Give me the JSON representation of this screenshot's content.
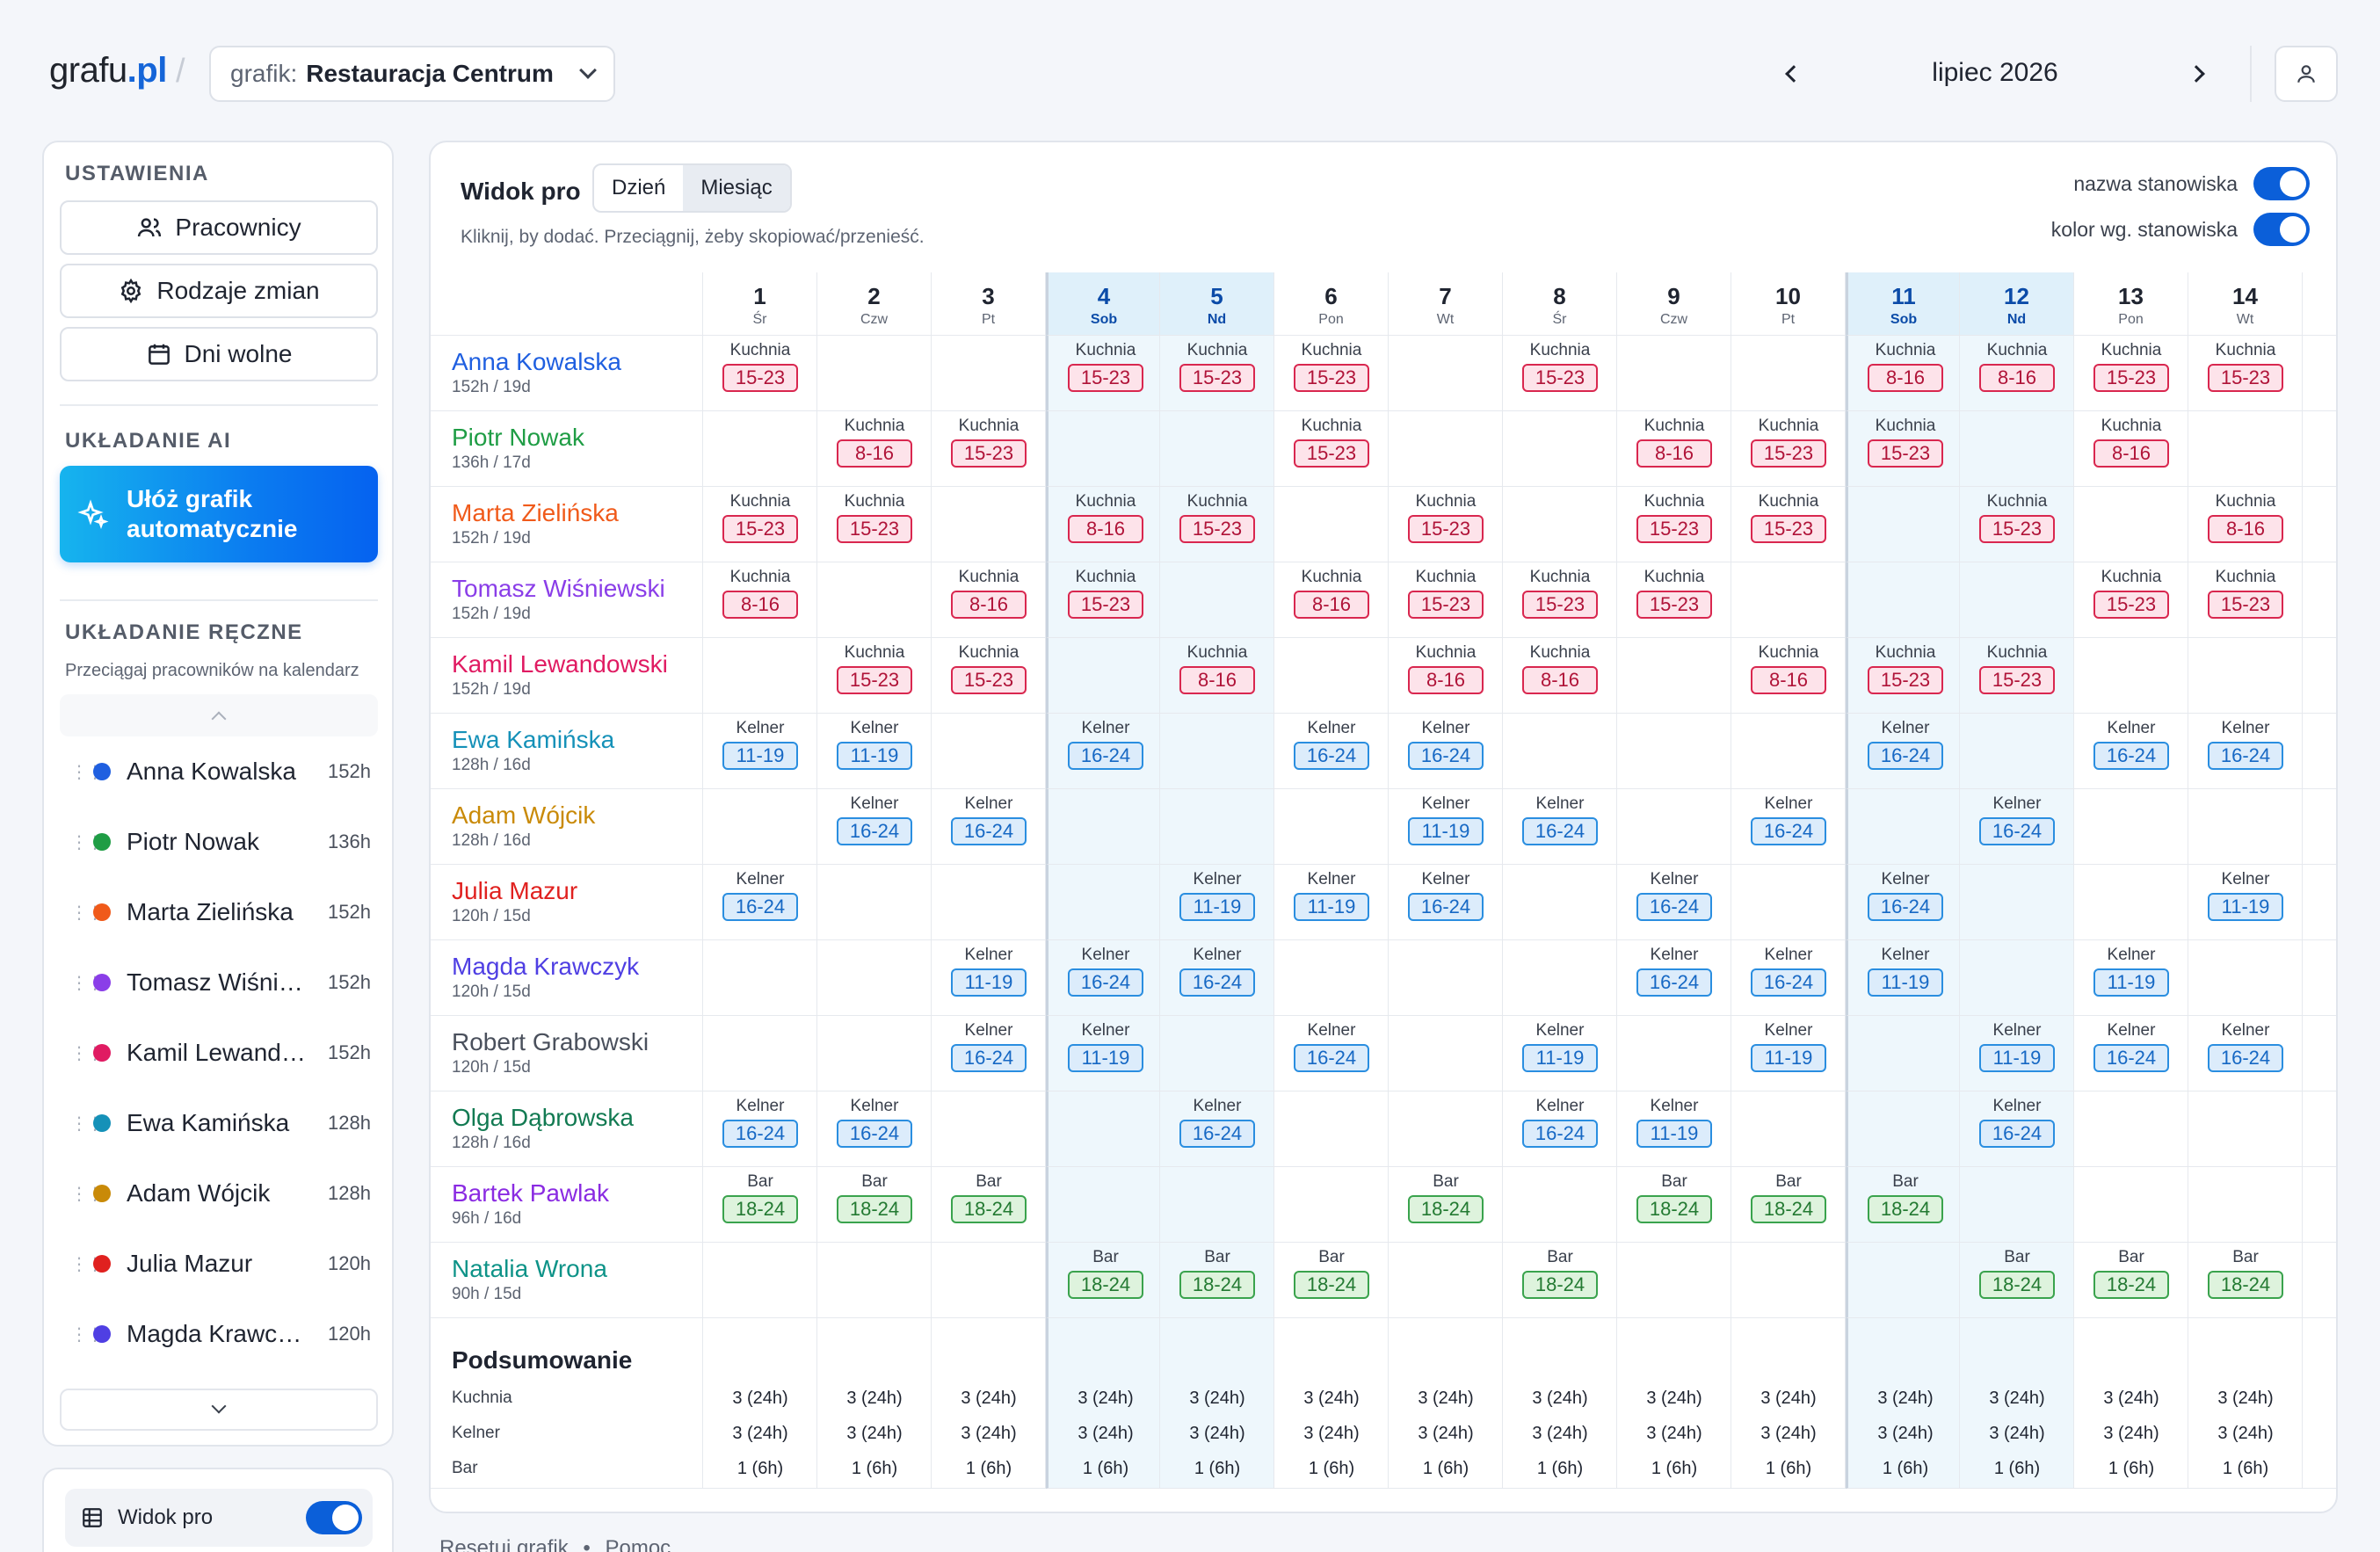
{
  "header": {
    "logo_main": "grafu",
    "logo_tld": ".pl",
    "schedule_label": "grafik:",
    "schedule_name": "Restauracja Centrum",
    "month": "lipiec 2026"
  },
  "sidebar": {
    "settings_title": "USTAWIENIA",
    "employees_btn": "Pracownicy",
    "shift_types_btn": "Rodzaje zmian",
    "days_off_btn": "Dni wolne",
    "ai_title": "UKŁADANIE AI",
    "ai_btn_line1": "Ułóż grafik",
    "ai_btn_line2": "automatycznie",
    "manual_title": "UKŁADANIE RĘCZNE",
    "manual_hint": "Przeciągaj pracowników na kalendarz",
    "list": [
      {
        "name": "Anna Kowalska",
        "hours": "152h",
        "color": "#1f5fe0"
      },
      {
        "name": "Piotr Nowak",
        "hours": "136h",
        "color": "#1f9d45"
      },
      {
        "name": "Marta Zielińska",
        "hours": "152h",
        "color": "#f05a1a"
      },
      {
        "name": "Tomasz Wiśniewski",
        "hours": "152h",
        "color": "#8a3ee8"
      },
      {
        "name": "Kamil Lewandowski",
        "hours": "152h",
        "color": "#e01b62"
      },
      {
        "name": "Ewa Kamińska",
        "hours": "128h",
        "color": "#1591b8"
      },
      {
        "name": "Adam Wójcik",
        "hours": "128h",
        "color": "#c98a08"
      },
      {
        "name": "Julia Mazur",
        "hours": "120h",
        "color": "#e0211f"
      },
      {
        "name": "Magda Krawczyk",
        "hours": "120h",
        "color": "#4f3fe3"
      }
    ],
    "pro_view_label": "Widok pro"
  },
  "main": {
    "title": "Widok pro",
    "tab_day": "Dzień",
    "tab_month": "Miesiąc",
    "hint": "Kliknij, by dodać. Przeciągnij, żeby skopiować/przenieść.",
    "opt_position_name": "nazwa stanowiska",
    "opt_color_by_position": "kolor wg. stanowiska",
    "days": [
      {
        "num": "1",
        "wd": "Śr",
        "wknd": false
      },
      {
        "num": "2",
        "wd": "Czw",
        "wknd": false
      },
      {
        "num": "3",
        "wd": "Pt",
        "wknd": false
      },
      {
        "num": "4",
        "wd": "Sob",
        "wknd": true
      },
      {
        "num": "5",
        "wd": "Nd",
        "wknd": true
      },
      {
        "num": "6",
        "wd": "Pon",
        "wknd": false
      },
      {
        "num": "7",
        "wd": "Wt",
        "wknd": false
      },
      {
        "num": "8",
        "wd": "Śr",
        "wknd": false
      },
      {
        "num": "9",
        "wd": "Czw",
        "wknd": false
      },
      {
        "num": "10",
        "wd": "Pt",
        "wknd": false
      },
      {
        "num": "11",
        "wd": "Sob",
        "wknd": true
      },
      {
        "num": "12",
        "wd": "Nd",
        "wknd": true
      },
      {
        "num": "13",
        "wd": "Pon",
        "wknd": false
      },
      {
        "num": "14",
        "wd": "Wt",
        "wknd": false
      }
    ],
    "employees": [
      {
        "name": "Anna Kowalska",
        "stats": "152h / 19d",
        "color": "#1f5fe0",
        "type": "k",
        "pos": "Kuchnia",
        "shifts": [
          "15-23",
          "",
          "",
          "15-23",
          "15-23",
          "15-23",
          "",
          "15-23",
          "",
          "",
          "8-16",
          "8-16",
          "15-23",
          "15-23"
        ]
      },
      {
        "name": "Piotr Nowak",
        "stats": "136h / 17d",
        "color": "#1f9d45",
        "type": "k",
        "pos": "Kuchnia",
        "shifts": [
          "",
          "8-16",
          "15-23",
          "",
          "",
          "15-23",
          "",
          "",
          "8-16",
          "15-23",
          "15-23",
          "",
          "8-16",
          ""
        ]
      },
      {
        "name": "Marta Zielińska",
        "stats": "152h / 19d",
        "color": "#f05a1a",
        "type": "k",
        "pos": "Kuchnia",
        "shifts": [
          "15-23",
          "15-23",
          "",
          "8-16",
          "15-23",
          "",
          "15-23",
          "",
          "15-23",
          "15-23",
          "",
          "15-23",
          "",
          "8-16"
        ]
      },
      {
        "name": "Tomasz Wiśniewski",
        "stats": "152h / 19d",
        "color": "#8a3ee8",
        "type": "k",
        "pos": "Kuchnia",
        "shifts": [
          "8-16",
          "",
          "8-16",
          "15-23",
          "",
          "8-16",
          "15-23",
          "15-23",
          "15-23",
          "",
          "",
          "",
          "15-23",
          "15-23"
        ]
      },
      {
        "name": "Kamil Lewandowski",
        "stats": "152h / 19d",
        "color": "#e01b62",
        "type": "k",
        "pos": "Kuchnia",
        "shifts": [
          "",
          "15-23",
          "15-23",
          "",
          "8-16",
          "",
          "8-16",
          "8-16",
          "",
          "8-16",
          "15-23",
          "15-23",
          "",
          ""
        ]
      },
      {
        "name": "Ewa Kamińska",
        "stats": "128h / 16d",
        "color": "#1591b8",
        "type": "w",
        "pos": "Kelner",
        "shifts": [
          "11-19",
          "11-19",
          "",
          "16-24",
          "",
          "16-24",
          "16-24",
          "",
          "",
          "",
          "16-24",
          "",
          "16-24",
          "16-24"
        ]
      },
      {
        "name": "Adam Wójcik",
        "stats": "128h / 16d",
        "color": "#c98a08",
        "type": "w",
        "pos": "Kelner",
        "shifts": [
          "",
          "16-24",
          "16-24",
          "",
          "",
          "",
          "11-19",
          "16-24",
          "",
          "16-24",
          "",
          "16-24",
          "",
          ""
        ]
      },
      {
        "name": "Julia Mazur",
        "stats": "120h / 15d",
        "color": "#e0211f",
        "type": "w",
        "pos": "Kelner",
        "shifts": [
          "16-24",
          "",
          "",
          "",
          "11-19",
          "11-19",
          "16-24",
          "",
          "16-24",
          "",
          "16-24",
          "",
          "",
          "11-19"
        ]
      },
      {
        "name": "Magda Krawczyk",
        "stats": "120h / 15d",
        "color": "#4f3fe3",
        "type": "w",
        "pos": "Kelner",
        "shifts": [
          "",
          "",
          "11-19",
          "16-24",
          "16-24",
          "",
          "",
          "",
          "16-24",
          "16-24",
          "11-19",
          "",
          "11-19",
          ""
        ]
      },
      {
        "name": "Robert Grabowski",
        "stats": "120h / 15d",
        "color": "#4a505c",
        "type": "w",
        "pos": "Kelner",
        "shifts": [
          "",
          "",
          "16-24",
          "11-19",
          "",
          "16-24",
          "",
          "11-19",
          "",
          "11-19",
          "",
          "11-19",
          "16-24",
          "16-24"
        ]
      },
      {
        "name": "Olga Dąbrowska",
        "stats": "128h / 16d",
        "color": "#127a52",
        "type": "w",
        "pos": "Kelner",
        "shifts": [
          "16-24",
          "16-24",
          "",
          "",
          "16-24",
          "",
          "",
          "16-24",
          "11-19",
          "",
          "",
          "16-24",
          "",
          ""
        ]
      },
      {
        "name": "Bartek Pawlak",
        "stats": "96h / 16d",
        "color": "#8a2be2",
        "type": "b",
        "pos": "Bar",
        "shifts": [
          "18-24",
          "18-24",
          "18-24",
          "",
          "",
          "",
          "18-24",
          "",
          "18-24",
          "18-24",
          "18-24",
          "",
          "",
          ""
        ]
      },
      {
        "name": "Natalia Wrona",
        "stats": "90h / 15d",
        "color": "#0e9388",
        "type": "b",
        "pos": "Bar",
        "shifts": [
          "",
          "",
          "",
          "18-24",
          "18-24",
          "18-24",
          "",
          "18-24",
          "",
          "",
          "",
          "18-24",
          "18-24",
          "18-24"
        ]
      }
    ],
    "summary": {
      "title": "Podsumowanie",
      "rows": [
        {
          "label": "Kuchnia",
          "value": "3 (24h)"
        },
        {
          "label": "Kelner",
          "value": "3 (24h)"
        },
        {
          "label": "Bar",
          "value": "1 (6h)"
        }
      ]
    }
  },
  "footer": {
    "reset": "Resetuj grafik",
    "sep": "•",
    "help": "Pomoc"
  }
}
